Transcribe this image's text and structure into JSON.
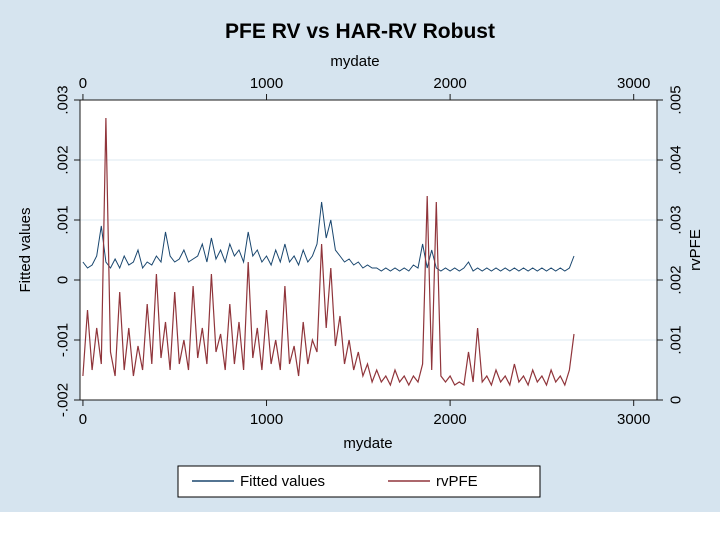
{
  "colors": {
    "background": "#d6e4ef",
    "plot_background": "#ffffff",
    "gridline": "#dce8f2",
    "axis_line": "#1a1a1a",
    "title": "#17365d",
    "navy": "#1a476f",
    "maroon": "#90353b",
    "legend_border": "#000000",
    "legend_background": "#ffffff"
  },
  "legend": {
    "items": [
      {
        "label": "Fitted values",
        "color": "#1a476f"
      },
      {
        "label": "rvPFE",
        "color": "#90353b"
      }
    ]
  },
  "chart_data": {
    "type": "line",
    "title": "PFE RV vs HAR-RV Robust",
    "x_start": 0,
    "x_step": 25,
    "xlim": [
      -16,
      3127
    ],
    "ylim_left": [
      -0.002,
      0.003
    ],
    "ylim_right": [
      0,
      0.005
    ],
    "grid": true,
    "legend_position": "bottom",
    "axes": {
      "x_bottom": {
        "title": "mydate",
        "ticks": [
          0,
          1000,
          2000,
          3000
        ],
        "labels": [
          "0",
          "1000",
          "2000",
          "3000"
        ]
      },
      "x_top": {
        "title": "mydate",
        "ticks": [
          0,
          1000,
          2000,
          3000
        ],
        "labels": [
          "0",
          "1000",
          "2000",
          "3000"
        ]
      },
      "y_left": {
        "title": "Fitted values",
        "ticks": [
          0.003,
          0.002,
          0.001,
          0,
          -0.001,
          -0.002
        ],
        "labels": [
          ".003",
          ".002",
          ".001",
          "0",
          "-.001",
          "-.002"
        ]
      },
      "y_right": {
        "title": "rvPFE",
        "ticks": [
          0,
          0.001,
          0.002,
          0.003,
          0.004,
          0.005
        ],
        "labels": [
          "0",
          ".001",
          ".002",
          ".003",
          ".004",
          ".005"
        ]
      }
    },
    "series": [
      {
        "name": "Fitted values",
        "axis": "left",
        "color": "#1a476f",
        "values": [
          0.0003,
          0.0002,
          0.00025,
          0.0004,
          0.0009,
          0.0003,
          0.0002,
          0.00035,
          0.0002,
          0.0004,
          0.00025,
          0.0003,
          0.0005,
          0.0002,
          0.0003,
          0.00025,
          0.0004,
          0.0003,
          0.0008,
          0.0004,
          0.0003,
          0.00035,
          0.0005,
          0.0003,
          0.00035,
          0.0004,
          0.0006,
          0.0003,
          0.0007,
          0.00035,
          0.0005,
          0.0003,
          0.0006,
          0.0004,
          0.0005,
          0.0003,
          0.0008,
          0.0004,
          0.0005,
          0.0003,
          0.0004,
          0.00025,
          0.0005,
          0.0003,
          0.0006,
          0.0003,
          0.0004,
          0.00025,
          0.0005,
          0.0003,
          0.0004,
          0.0006,
          0.0013,
          0.0007,
          0.001,
          0.0005,
          0.0004,
          0.0003,
          0.00035,
          0.00025,
          0.0003,
          0.0002,
          0.00025,
          0.0002,
          0.0002,
          0.00015,
          0.0002,
          0.00015,
          0.0002,
          0.00015,
          0.0002,
          0.00015,
          0.00025,
          0.0002,
          0.0006,
          0.0002,
          0.0005,
          0.0002,
          0.00015,
          0.0002,
          0.00015,
          0.0002,
          0.00015,
          0.0002,
          0.0003,
          0.00015,
          0.0002,
          0.00015,
          0.0002,
          0.00015,
          0.0002,
          0.00015,
          0.0002,
          0.00015,
          0.0002,
          0.00015,
          0.0002,
          0.00015,
          0.0002,
          0.00015,
          0.0002,
          0.00015,
          0.0002,
          0.00015,
          0.0002,
          0.00015,
          0.0002,
          0.0004
        ]
      },
      {
        "name": "rvPFE",
        "axis": "right",
        "color": "#90353b",
        "values": [
          0.0004,
          0.0015,
          0.0005,
          0.0012,
          0.0006,
          0.0047,
          0.0008,
          0.0004,
          0.0018,
          0.0005,
          0.0012,
          0.0004,
          0.0009,
          0.0005,
          0.0016,
          0.0006,
          0.0021,
          0.0007,
          0.0013,
          0.0005,
          0.0018,
          0.0006,
          0.001,
          0.0005,
          0.0019,
          0.0007,
          0.0012,
          0.0006,
          0.0021,
          0.0008,
          0.0011,
          0.0005,
          0.0016,
          0.0006,
          0.0013,
          0.0005,
          0.0023,
          0.0007,
          0.0012,
          0.0005,
          0.0015,
          0.0006,
          0.001,
          0.0005,
          0.0019,
          0.0006,
          0.0009,
          0.0004,
          0.0013,
          0.0006,
          0.001,
          0.0008,
          0.0026,
          0.0012,
          0.0022,
          0.0009,
          0.0014,
          0.0006,
          0.001,
          0.0005,
          0.0008,
          0.0004,
          0.0006,
          0.0003,
          0.0005,
          0.0003,
          0.0004,
          0.00025,
          0.0005,
          0.0003,
          0.0004,
          0.00025,
          0.0004,
          0.0003,
          0.0006,
          0.0034,
          0.0005,
          0.0033,
          0.0004,
          0.0003,
          0.0004,
          0.00025,
          0.0003,
          0.00025,
          0.0008,
          0.0003,
          0.0012,
          0.0003,
          0.0004,
          0.00025,
          0.0005,
          0.0003,
          0.0004,
          0.00025,
          0.0006,
          0.0003,
          0.0004,
          0.00025,
          0.0005,
          0.0003,
          0.0004,
          0.00025,
          0.0005,
          0.0003,
          0.0004,
          0.00025,
          0.0005,
          0.0011
        ]
      }
    ]
  }
}
